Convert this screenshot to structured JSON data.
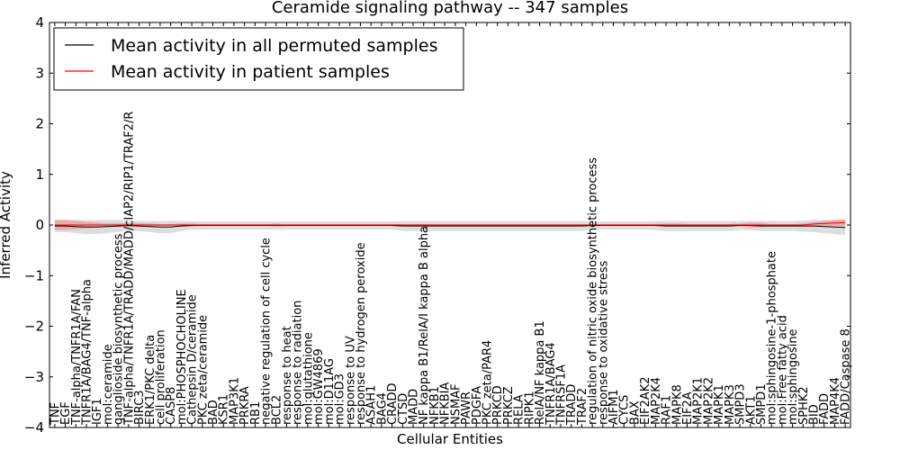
{
  "chart_data": {
    "type": "line",
    "title": "Ceramide signaling pathway -- 347 samples",
    "xlabel": "Cellular Entities",
    "ylabel": "Inferred Activity",
    "ylim": [
      -4,
      4
    ],
    "yticks": [
      "4",
      "3",
      "2",
      "1",
      "0",
      "−1",
      "−2",
      "−3",
      "−4"
    ],
    "legend_position": "top-left",
    "categories": [
      "TNF",
      "EGF",
      "TNF-alpha/TNFR1A/FAN",
      "TNFR1A/BAG4/TNF-alpha",
      "IGF1",
      "mol:ceramide",
      "ganglioside biosynthetic process",
      "TNF-alpha/TNFR1A/TRADD/MADD/cIAP2/RIP1/TRAF2/R",
      "BIRC3",
      "ERK1/PKC delta",
      "cell proliferation",
      "CASP8",
      "mol:PHOSPHOCHOLINE",
      "Cathepsin D/ceramide",
      "PKC zeta/ceramide",
      "BAD",
      "KSR1",
      "MAP3K1",
      "PRKRA",
      "RB1",
      "negative regulation of cell cycle",
      "BCL2",
      "response to heat",
      "response to radiation",
      "mol:glutathione",
      "mol:GW4869",
      "mol:D11AG",
      "mol:GD3",
      "response to UV",
      "response to hydrogen peroxide",
      "ASAH1",
      "BAG4",
      "CRADD",
      "CTSD",
      "MADD",
      "NF kappa B1/RelA/I kappa B alpha",
      "NFKB1",
      "NFKBIA",
      "NSMAF",
      "PAWR",
      "PDGFA",
      "PKC zeta/PAR4",
      "PRKCD",
      "PRKCZ",
      "RELA",
      "RIPK1",
      "RelA/NF kappa B1",
      "TNFR1A/BAG4",
      "TNFRSF1A",
      "TRADD",
      "TRAF2",
      "regulation of nitric oxide biosynthetic process",
      "response to oxidative stress",
      "AIFM1",
      "CYCS",
      "BAX",
      "EIF2AK2",
      "MAP2K4",
      "RAF1",
      "MAPK8",
      "EIF2A",
      "MAP2K1",
      "MAP2K2",
      "MAPK1",
      "MAPK3",
      "SMPD3",
      "AKT1",
      "SMPD1",
      "mol:sphingosine-1-phosphate",
      "mol:Free fatty acid",
      "mol:sphingosine",
      "SPHK2",
      "BID",
      "FADD",
      "MAP4K4",
      "FADD/Caspase 8"
    ],
    "series": [
      {
        "name": "Mean activity in all permuted samples",
        "color": "#000000",
        "band_color": "#d9d9d9",
        "values": [
          -0.02,
          -0.02,
          -0.03,
          -0.04,
          -0.04,
          -0.03,
          -0.02,
          -0.01,
          -0.02,
          -0.03,
          -0.04,
          -0.04,
          -0.02,
          -0.01,
          -0.01,
          -0.01,
          -0.01,
          -0.01,
          -0.01,
          -0.01,
          -0.01,
          -0.01,
          -0.01,
          -0.01,
          -0.01,
          -0.01,
          -0.01,
          -0.01,
          -0.01,
          -0.01,
          -0.01,
          -0.01,
          -0.01,
          -0.02,
          -0.02,
          -0.02,
          -0.02,
          -0.02,
          -0.02,
          -0.02,
          -0.02,
          -0.02,
          -0.02,
          -0.02,
          -0.02,
          -0.02,
          -0.02,
          -0.02,
          -0.02,
          -0.02,
          -0.02,
          -0.01,
          -0.01,
          -0.01,
          -0.01,
          -0.01,
          -0.01,
          -0.01,
          -0.02,
          -0.02,
          -0.02,
          -0.02,
          -0.02,
          -0.02,
          -0.02,
          -0.01,
          -0.01,
          -0.02,
          -0.02,
          -0.02,
          -0.02,
          -0.02,
          -0.02,
          -0.03,
          -0.04,
          -0.05
        ],
        "band": [
          0.12,
          0.12,
          0.13,
          0.14,
          0.14,
          0.13,
          0.12,
          0.1,
          0.1,
          0.11,
          0.12,
          0.12,
          0.1,
          0.08,
          0.08,
          0.08,
          0.08,
          0.08,
          0.08,
          0.08,
          0.08,
          0.08,
          0.08,
          0.08,
          0.08,
          0.08,
          0.08,
          0.08,
          0.08,
          0.08,
          0.08,
          0.08,
          0.08,
          0.1,
          0.1,
          0.1,
          0.1,
          0.1,
          0.1,
          0.1,
          0.1,
          0.1,
          0.1,
          0.1,
          0.1,
          0.1,
          0.1,
          0.1,
          0.1,
          0.1,
          0.1,
          0.08,
          0.08,
          0.08,
          0.08,
          0.08,
          0.08,
          0.09,
          0.1,
          0.1,
          0.1,
          0.1,
          0.1,
          0.1,
          0.1,
          0.09,
          0.09,
          0.1,
          0.1,
          0.1,
          0.1,
          0.11,
          0.12,
          0.13,
          0.14,
          0.15
        ]
      },
      {
        "name": "Mean activity in patient samples",
        "color": "#ff0000",
        "band_color": "#f08080",
        "values": [
          0.0,
          0.0,
          0.0,
          0.0,
          0.0,
          0.0,
          0.0,
          0.0,
          0.0,
          0.0,
          0.0,
          0.0,
          0.0,
          0.0,
          0.0,
          0.0,
          0.0,
          0.0,
          0.0,
          0.0,
          0.0,
          0.0,
          0.0,
          0.0,
          0.0,
          0.0,
          0.0,
          0.0,
          0.0,
          0.0,
          0.0,
          0.0,
          0.0,
          0.0,
          0.0,
          0.0,
          0.0,
          0.0,
          0.0,
          0.0,
          0.0,
          0.0,
          0.0,
          0.0,
          0.0,
          0.0,
          0.0,
          0.0,
          0.0,
          0.0,
          0.0,
          0.0,
          0.0,
          0.0,
          0.0,
          0.0,
          0.0,
          0.0,
          0.0,
          0.0,
          0.0,
          0.0,
          0.0,
          0.0,
          0.0,
          0.0,
          0.0,
          0.0,
          0.0,
          0.0,
          0.0,
          0.0,
          0.02,
          0.03,
          0.04,
          0.05
        ],
        "band": [
          0.1,
          0.1,
          0.08,
          0.06,
          0.05,
          0.03,
          0.04,
          0.04,
          0.04,
          0.03,
          0.02,
          0.02,
          0.03,
          0.03,
          0.02,
          0.02,
          0.02,
          0.02,
          0.02,
          0.02,
          0.02,
          0.03,
          0.02,
          0.02,
          0.02,
          0.02,
          0.02,
          0.02,
          0.02,
          0.02,
          0.02,
          0.02,
          0.02,
          0.02,
          0.02,
          0.02,
          0.02,
          0.02,
          0.02,
          0.02,
          0.02,
          0.02,
          0.02,
          0.02,
          0.02,
          0.02,
          0.02,
          0.02,
          0.02,
          0.02,
          0.02,
          0.02,
          0.02,
          0.02,
          0.02,
          0.02,
          0.02,
          0.02,
          0.03,
          0.03,
          0.02,
          0.02,
          0.02,
          0.02,
          0.02,
          0.03,
          0.05,
          0.04,
          0.02,
          0.02,
          0.02,
          0.03,
          0.04,
          0.05,
          0.06,
          0.07
        ]
      }
    ]
  }
}
